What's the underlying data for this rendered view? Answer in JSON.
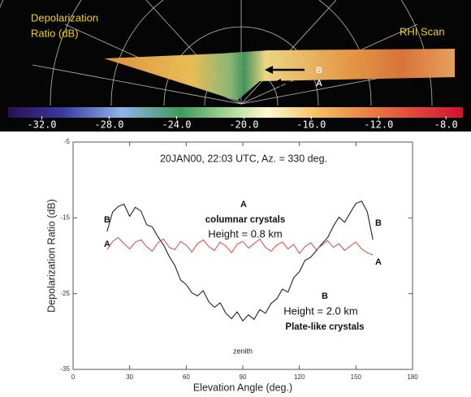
{
  "radar": {
    "title_lines": [
      "Depolarization",
      "Ratio (dB)"
    ],
    "scan_label": "RHI Scan",
    "arrow_labels": [
      "B",
      "A"
    ],
    "colorbar": {
      "lim": [
        -34,
        -7
      ],
      "ticks": [
        {
          "value": -32,
          "label": "-32.0"
        },
        {
          "value": -28,
          "label": "-28.0"
        },
        {
          "value": -24,
          "label": "-24.0"
        },
        {
          "value": -20,
          "label": "-20.0"
        },
        {
          "value": -16,
          "label": "-16.0"
        },
        {
          "value": -12,
          "label": "-12.0"
        },
        {
          "value": -8,
          "label": "-8.0"
        }
      ]
    }
  },
  "chart_data": {
    "type": "line",
    "title": "20JAN00, 22:03 UTC, Az. = 330 deg.",
    "x_label": "Elevation Angle (deg.)",
    "y_label": "Depolarization Ratio (dB)",
    "xlim": [
      0,
      180
    ],
    "xticks": [
      0,
      30,
      60,
      90,
      120,
      150,
      180
    ],
    "ylim": [
      -35,
      -5
    ],
    "yticks": [
      -35,
      -25,
      -15,
      -5
    ],
    "x": [
      18,
      21,
      24,
      27,
      30,
      33,
      36,
      39,
      42,
      45,
      48,
      51,
      54,
      57,
      60,
      63,
      66,
      69,
      72,
      75,
      78,
      81,
      84,
      87,
      90,
      93,
      96,
      99,
      102,
      105,
      108,
      111,
      114,
      117,
      120,
      123,
      126,
      129,
      132,
      135,
      138,
      141,
      144,
      147,
      150,
      153,
      156,
      159
    ],
    "series": [
      {
        "name": "B",
        "color": "#222222",
        "values": [
          -16.8,
          -14.2,
          -13.5,
          -13.2,
          -14.8,
          -13.6,
          -14.1,
          -15.9,
          -16.2,
          -17.5,
          -18.6,
          -20.1,
          -21.3,
          -23.2,
          -23.8,
          -24.9,
          -25.3,
          -24.6,
          -26.1,
          -26.8,
          -26.2,
          -27.6,
          -28.3,
          -27.4,
          -28.6,
          -27.8,
          -28.4,
          -27.1,
          -27.6,
          -26.3,
          -25.7,
          -24.4,
          -24.8,
          -22.9,
          -22.1,
          -20.6,
          -20.2,
          -19.3,
          -18.4,
          -17.6,
          -16.1,
          -14.9,
          -15.6,
          -14.3,
          -13.1,
          -12.8,
          -14.2,
          -17.9
        ]
      },
      {
        "name": "A",
        "color": "#d9534f",
        "values": [
          -19.2,
          -18.1,
          -17.6,
          -18.4,
          -19.1,
          -18.2,
          -17.9,
          -18.8,
          -19.4,
          -18.3,
          -17.8,
          -18.9,
          -19.2,
          -18.1,
          -18.6,
          -19.5,
          -18.4,
          -17.9,
          -18.8,
          -19.3,
          -18.2,
          -18.7,
          -19.6,
          -18.5,
          -18.1,
          -19.0,
          -18.4,
          -17.8,
          -18.9,
          -19.4,
          -18.6,
          -18.2,
          -19.1,
          -18.5,
          -19.7,
          -18.8,
          -18.3,
          -19.2,
          -18.6,
          -18.0,
          -18.9,
          -18.4,
          -19.3,
          -18.7,
          -18.2,
          -19.1,
          -19.6,
          -19.9
        ]
      }
    ],
    "annotations": {
      "a_title": "A",
      "a_type": "columnar crystals",
      "a_height": "Height = 0.8 km",
      "b_title": "B",
      "b_height": "Height = 2.0 km",
      "b_type": "Plate-like crystals",
      "zenith": "zenith"
    }
  }
}
